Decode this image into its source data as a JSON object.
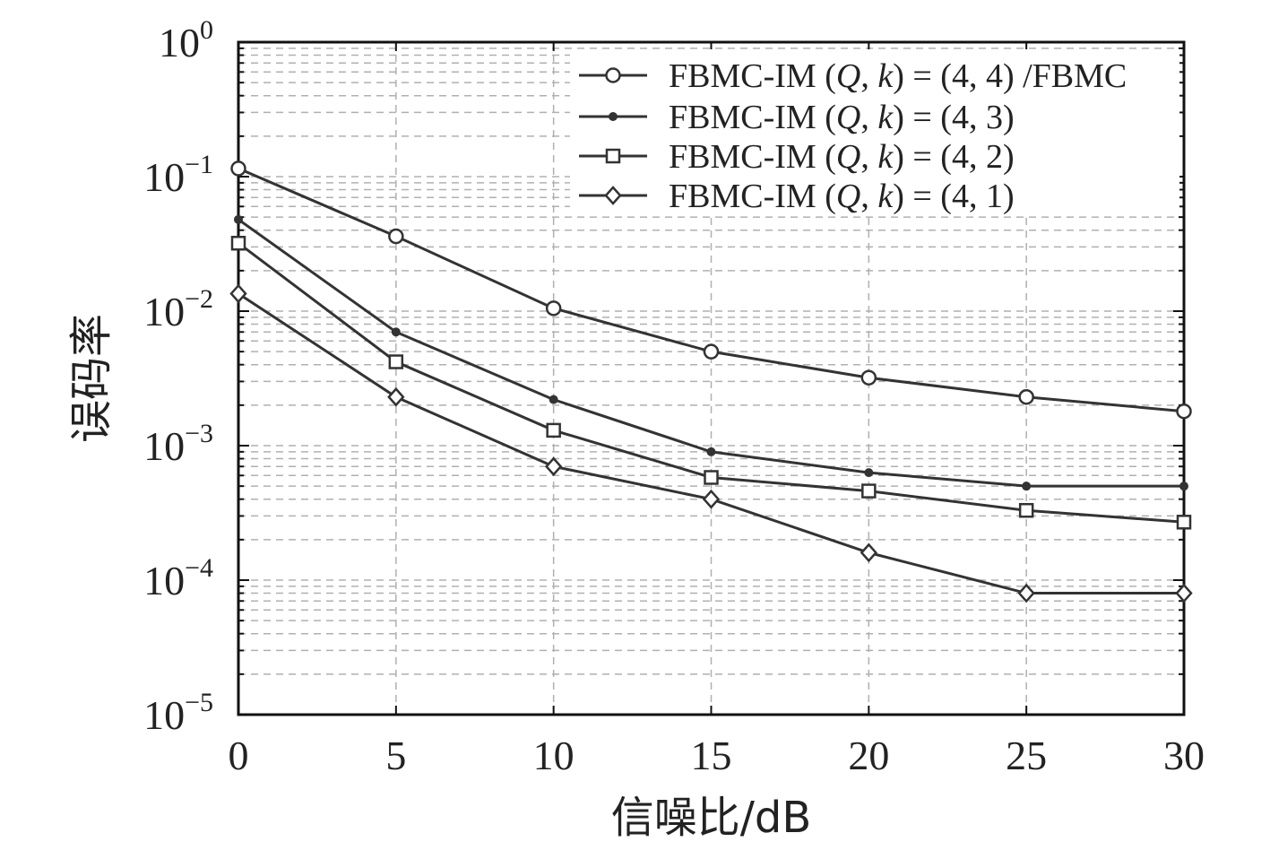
{
  "chart_data": {
    "type": "line",
    "title": "",
    "xlabel": "信噪比/dB",
    "ylabel": "误码率",
    "xlim": [
      0,
      30
    ],
    "ylim": [
      1e-05,
      1
    ],
    "yscale": "log",
    "grid": true,
    "legend_position": "top-right",
    "x": [
      0,
      5,
      10,
      15,
      20,
      25,
      30
    ],
    "x_tick_labels": [
      "0",
      "5",
      "10",
      "15",
      "20",
      "25",
      "30"
    ],
    "y_tick_labels": [
      {
        "base": "10",
        "exp": "0"
      },
      {
        "base": "10",
        "exp": "−1"
      },
      {
        "base": "10",
        "exp": "−2"
      },
      {
        "base": "10",
        "exp": "−3"
      },
      {
        "base": "10",
        "exp": "−4"
      },
      {
        "base": "10",
        "exp": "−5"
      }
    ],
    "series": [
      {
        "legend": {
          "pre": "FBMC-IM (",
          "q": "Q",
          "mid": ", ",
          "k": "k",
          "post": ") = (4, 4) /FBMC"
        },
        "marker": "circle",
        "values": [
          0.115,
          0.036,
          0.0105,
          0.005,
          0.0032,
          0.0023,
          0.0018
        ]
      },
      {
        "legend": {
          "pre": "FBMC-IM (",
          "q": "Q",
          "mid": ", ",
          "k": "k",
          "post": ") = (4, 3)"
        },
        "marker": "dot",
        "values": [
          0.048,
          0.007,
          0.0022,
          0.0009,
          0.00063,
          0.0005,
          0.0005
        ]
      },
      {
        "legend": {
          "pre": "FBMC-IM (",
          "q": "Q",
          "mid": ", ",
          "k": "k",
          "post": ") = (4, 2)"
        },
        "marker": "square",
        "values": [
          0.032,
          0.0042,
          0.0013,
          0.00058,
          0.00046,
          0.00033,
          0.00027
        ]
      },
      {
        "legend": {
          "pre": "FBMC-IM (",
          "q": "Q",
          "mid": ", ",
          "k": "k",
          "post": ") = (4, 1)"
        },
        "marker": "diamond",
        "values": [
          0.0135,
          0.0023,
          0.0007,
          0.0004,
          0.00016,
          8e-05,
          8e-05
        ]
      }
    ],
    "colors": {
      "line": "#333333",
      "grid": "#b0b0b0",
      "axis": "#111111"
    }
  }
}
